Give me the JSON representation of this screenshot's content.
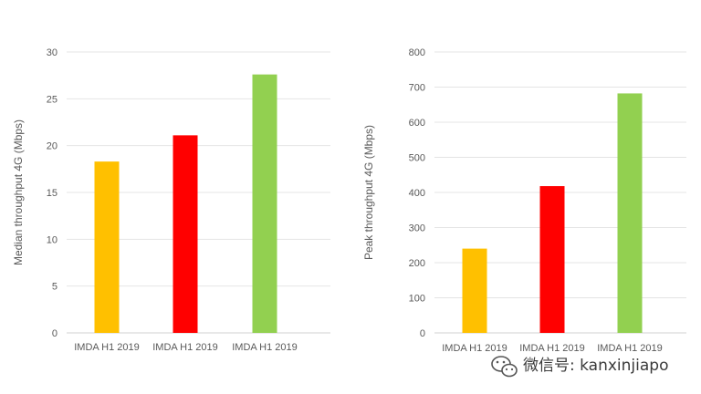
{
  "chart_data": [
    {
      "type": "bar",
      "categories": [
        "IMDA H1 2019",
        "IMDA H1 2019",
        "IMDA H1 2019"
      ],
      "values": [
        18.3,
        21.1,
        27.6
      ],
      "colors": [
        "#FFC000",
        "#FF0000",
        "#92D050"
      ],
      "ylabel": "Median throughput 4G (Mbps)",
      "ylim": [
        0,
        30
      ],
      "yticks": [
        0,
        5,
        10,
        15,
        20,
        25,
        30
      ],
      "grid": true
    },
    {
      "type": "bar",
      "categories": [
        "IMDA H1 2019",
        "IMDA H1 2019",
        "IMDA H1 2019"
      ],
      "values": [
        240,
        418,
        682
      ],
      "colors": [
        "#FFC000",
        "#FF0000",
        "#92D050"
      ],
      "ylabel": "Peak throughput 4G (Mbps)",
      "ylim": [
        0,
        800
      ],
      "yticks": [
        0,
        100,
        200,
        300,
        400,
        500,
        600,
        700,
        800
      ],
      "grid": true
    }
  ],
  "watermark": {
    "text": "微信号: kanxinjiapo",
    "icon": "wechat-icon"
  }
}
